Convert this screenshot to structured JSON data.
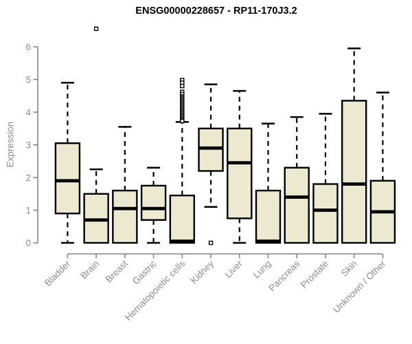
{
  "chart_data": {
    "type": "boxplot",
    "title": "ENSG00000228657 - RP11-170J3.2",
    "ylabel": "Expression",
    "xlabel": "",
    "ylim": [
      0,
      6
    ],
    "yticks": [
      0,
      1,
      2,
      3,
      4,
      5,
      6
    ],
    "grid": false,
    "legend": false,
    "categories": [
      "Bladder",
      "Brain",
      "Breast",
      "Gastric",
      "Hematopoietic cells",
      "Kidney",
      "Liver",
      "Lung",
      "Pancreas",
      "Prostate",
      "Skin",
      "Unknown / Other"
    ],
    "series": [
      {
        "category": "Bladder",
        "whisker_low": 0,
        "q1": 0.9,
        "median": 1.9,
        "q3": 3.05,
        "whisker_high": 4.9,
        "outliers": []
      },
      {
        "category": "Brain",
        "whisker_low": 0,
        "q1": 0,
        "median": 0.7,
        "q3": 1.5,
        "whisker_high": 2.25,
        "outliers": [
          6.55
        ]
      },
      {
        "category": "Breast",
        "whisker_low": 0,
        "q1": 0,
        "median": 1.05,
        "q3": 1.6,
        "whisker_high": 3.55,
        "outliers": []
      },
      {
        "category": "Gastric",
        "whisker_low": 0,
        "q1": 0.7,
        "median": 1.05,
        "q3": 1.75,
        "whisker_high": 2.3,
        "outliers": []
      },
      {
        "category": "Hematopoietic cells",
        "whisker_low": 0,
        "q1": 0,
        "median": 0.05,
        "q3": 1.45,
        "whisker_high": 3.7,
        "outliers": [
          4.98,
          4.9,
          4.8,
          4.62,
          4.55,
          4.48,
          4.44,
          4.4,
          4.36,
          4.32,
          4.28,
          4.24,
          4.2,
          4.16,
          4.12,
          4.08,
          4.04,
          4.0,
          3.96,
          3.92,
          3.88,
          3.84,
          3.8,
          3.76,
          3.73
        ]
      },
      {
        "category": "Kidney",
        "whisker_low": 1.1,
        "q1": 2.2,
        "median": 2.9,
        "q3": 3.5,
        "whisker_high": 4.85,
        "outliers": [
          0
        ]
      },
      {
        "category": "Liver",
        "whisker_low": 0,
        "q1": 0.75,
        "median": 2.45,
        "q3": 3.5,
        "whisker_high": 4.65,
        "outliers": []
      },
      {
        "category": "Lung",
        "whisker_low": 0,
        "q1": 0,
        "median": 0.05,
        "q3": 1.6,
        "whisker_high": 3.65,
        "outliers": []
      },
      {
        "category": "Pancreas",
        "whisker_low": 0,
        "q1": 0,
        "median": 1.4,
        "q3": 2.3,
        "whisker_high": 3.85,
        "outliers": []
      },
      {
        "category": "Prostate",
        "whisker_low": 0,
        "q1": 0,
        "median": 1.0,
        "q3": 1.8,
        "whisker_high": 3.95,
        "outliers": []
      },
      {
        "category": "Skin",
        "whisker_low": 0,
        "q1": 0,
        "median": 1.8,
        "q3": 4.35,
        "whisker_high": 5.95,
        "outliers": []
      },
      {
        "category": "Unknown / Other",
        "whisker_low": 0,
        "q1": 0,
        "median": 0.95,
        "q3": 1.9,
        "whisker_high": 4.6,
        "outliers": []
      }
    ],
    "colors": {
      "box_fill": "#EDE8D0",
      "box_border": "#000000",
      "median": "#000000",
      "whisker": "#000000",
      "outlier_stroke": "#000000",
      "outlier_fill": "#FFFFFF",
      "axis": "#848484",
      "tick_label": "#8C8C8C",
      "title": "#000000",
      "background": "#FFFFFF"
    }
  }
}
